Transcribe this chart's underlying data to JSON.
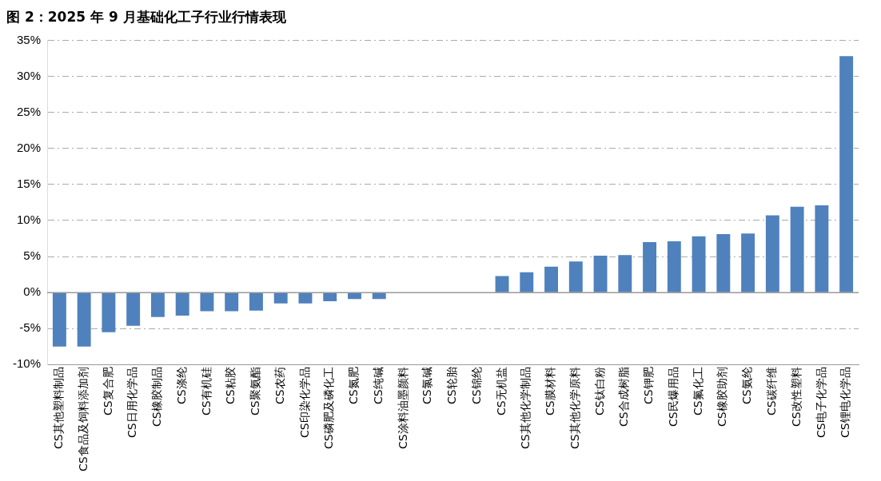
{
  "chart_data": {
    "type": "bar",
    "title": "图 2：2025 年 9 月基础化工子行业行情表现",
    "categories": [
      "CS其他塑料制品",
      "CS食品及饲料添加剂",
      "CS复合肥",
      "CS日用化学品",
      "CS橡胶制品",
      "CS涤纶",
      "CS有机硅",
      "CS粘胶",
      "CS聚氨酯",
      "CS农药",
      "CS印染化学品",
      "CS磷肥及磷化工",
      "CS氮肥",
      "CS纯碱",
      "CS涂料油墨颜料",
      "CS氯碱",
      "CS轮胎",
      "CS锦纶",
      "CS无机盐",
      "CS其他化学制品",
      "CS膜材料",
      "CS其他化学原料",
      "CS钛白粉",
      "CS合成树脂",
      "CS钾肥",
      "CS民爆用品",
      "CS氟化工",
      "CS橡胶助剂",
      "CS氨纶",
      "CS碳纤维",
      "CS改性塑料",
      "CS电子化学品",
      "CS锂电化学品"
    ],
    "values": [
      -7.5,
      -7.5,
      -5.5,
      -4.6,
      -3.4,
      -3.2,
      -2.6,
      -2.6,
      -2.5,
      -1.5,
      -1.5,
      -1.2,
      -0.9,
      -0.9,
      -0.1,
      0,
      0,
      0,
      2.3,
      2.8,
      3.6,
      4.3,
      5.1,
      5.2,
      7.0,
      7.1,
      7.8,
      8.1,
      8.2,
      10.7,
      11.9,
      12.1,
      32.8
    ],
    "color": "#4f81bd",
    "ylim": [
      -10,
      35
    ],
    "yticks": [
      {
        "value": -10,
        "label": "-10%"
      },
      {
        "value": -5,
        "label": "-5%"
      },
      {
        "value": 0,
        "label": "0%"
      },
      {
        "value": 5,
        "label": "5%"
      },
      {
        "value": 10,
        "label": "10%"
      },
      {
        "value": 15,
        "label": "15%"
      },
      {
        "value": 20,
        "label": "20%"
      },
      {
        "value": 25,
        "label": "25%"
      },
      {
        "value": 30,
        "label": "30%"
      },
      {
        "value": 35,
        "label": "35%"
      }
    ],
    "grid": "y"
  }
}
